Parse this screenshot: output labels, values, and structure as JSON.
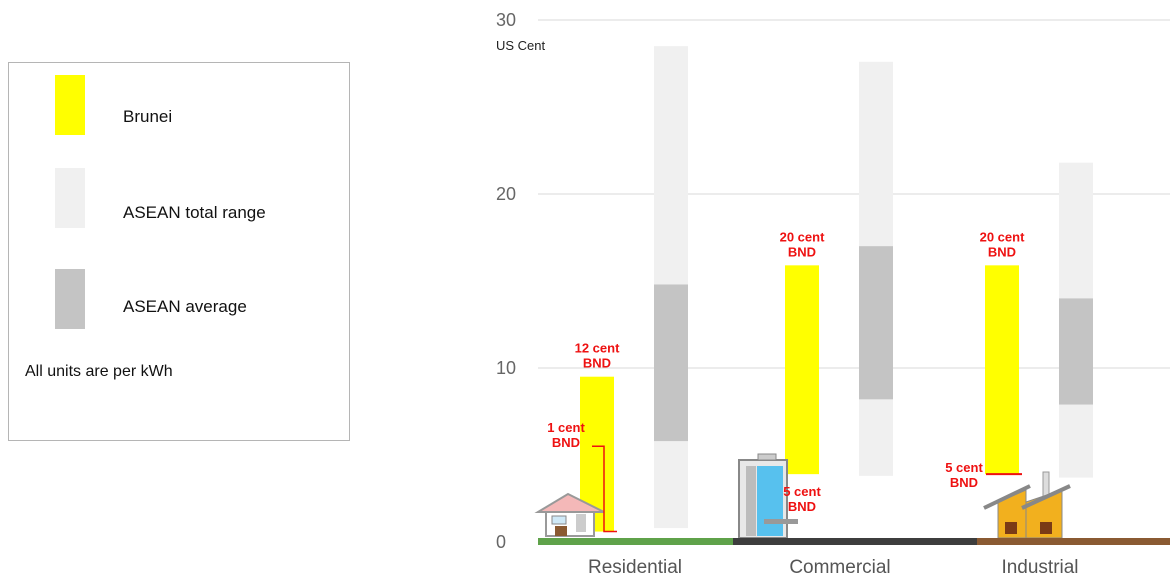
{
  "legend": {
    "items": [
      {
        "label": "Brunei",
        "color": "#ffff00"
      },
      {
        "label": "ASEAN total range",
        "color": "#f0f0f0"
      },
      {
        "label": "ASEAN average",
        "color": "#c4c4c4"
      }
    ],
    "note": "All units are per kWh"
  },
  "chart_data": {
    "type": "bar",
    "ylabel": "US Cent",
    "ylim": [
      0,
      30
    ],
    "yticks": [
      "0",
      "10",
      "20",
      "30"
    ],
    "grid": true,
    "categories": [
      "Residential",
      "Commercial",
      "Industrial"
    ],
    "ground_colors": [
      "#5fa24a",
      "#3d3d3d",
      "#8a5a32"
    ],
    "series": [
      {
        "name": "Brunei",
        "color": "#ffff00",
        "ranges": [
          [
            0.6,
            9.5
          ],
          [
            3.9,
            15.9
          ],
          [
            3.9,
            15.9
          ]
        ]
      },
      {
        "name": "ASEAN total range",
        "color": "#f0f0f0",
        "ranges": [
          [
            0.8,
            28.5
          ],
          [
            3.8,
            27.6
          ],
          [
            3.7,
            21.8
          ]
        ]
      },
      {
        "name": "ASEAN average",
        "color": "#c4c4c4",
        "ranges": [
          [
            5.8,
            14.8
          ],
          [
            8.2,
            17.0
          ],
          [
            7.9,
            14.0
          ]
        ]
      }
    ],
    "annotations": [
      {
        "category": "Residential",
        "lines": [
          "12 cent",
          "BND"
        ],
        "value": 9.5
      },
      {
        "category": "Residential",
        "lines": [
          "1 cent",
          "BND"
        ],
        "value": 0.6
      },
      {
        "category": "Commercial",
        "lines": [
          "20 cent",
          "BND"
        ],
        "value": 15.9
      },
      {
        "category": "Commercial",
        "lines": [
          "5 cent",
          "BND"
        ],
        "value": 3.9
      },
      {
        "category": "Industrial",
        "lines": [
          "20 cent",
          "BND"
        ],
        "value": 15.9
      },
      {
        "category": "Industrial",
        "lines": [
          "5 cent",
          "BND"
        ],
        "value": 3.9
      }
    ]
  }
}
